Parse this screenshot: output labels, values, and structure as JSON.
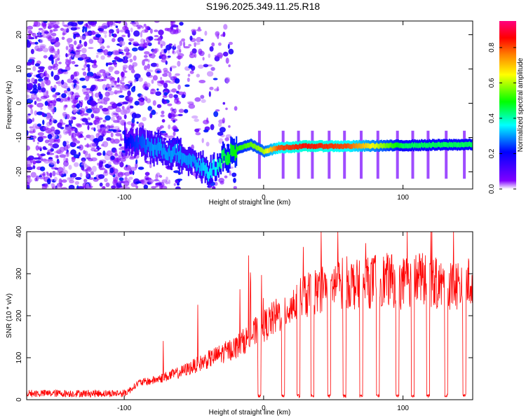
{
  "title": "S196.2025.349.11.25.R18",
  "chart_data": [
    {
      "type": "heatmap",
      "xlabel": "Height of straight line (km)",
      "ylabel": "Frequency (Hz)",
      "xlim": [
        -170,
        150
      ],
      "ylim": [
        -25,
        24
      ],
      "xticks": [
        -100,
        0,
        100
      ],
      "yticks": [
        -20,
        -10,
        0,
        10,
        20
      ],
      "colorbar": {
        "label": "Normalized spectral amplitude",
        "range": [
          0.0,
          0.95
        ],
        "ticks": [
          "0.0",
          "0.2",
          "0.4",
          "0.6",
          "0.8"
        ],
        "tick_values": [
          0.0,
          0.2,
          0.4,
          0.6,
          0.8
        ],
        "colors": [
          "#ffffff",
          "#8000ff",
          "#0000ff",
          "#00ffff",
          "#00ff00",
          "#ffff00",
          "#ff8000",
          "#ff0000",
          "#ff0080"
        ]
      },
      "ridge": {
        "x": [
          -100,
          -90,
          -80,
          -70,
          -60,
          -50,
          -40,
          -35,
          -30,
          -20,
          -10,
          0,
          10,
          30,
          60,
          100,
          150
        ],
        "freq": [
          -11,
          -12,
          -12.5,
          -14,
          -15,
          -17,
          -20,
          -19,
          -16,
          -13.5,
          -12,
          -14,
          -13,
          -12.5,
          -12.5,
          -12.3,
          -12
        ],
        "amplitude": [
          0.2,
          0.25,
          0.3,
          0.3,
          0.3,
          0.3,
          0.35,
          0.35,
          0.45,
          0.5,
          0.55,
          0.6,
          0.8,
          0.85,
          0.8,
          0.45,
          0.45
        ]
      }
    },
    {
      "type": "line",
      "xlabel": "Height of straight line (km)",
      "ylabel": "SNR (10 * v/v)",
      "xlim": [
        -170,
        150
      ],
      "ylim": [
        0,
        400
      ],
      "xticks": [
        -100,
        0,
        100
      ],
      "yticks": [
        0,
        100,
        200,
        300,
        400
      ],
      "color": "#ff0000",
      "series": [
        {
          "name": "SNR",
          "x": [
            -170,
            -150,
            -130,
            -110,
            -100,
            -95,
            -90,
            -80,
            -70,
            -60,
            -50,
            -40,
            -30,
            -20,
            -10,
            0,
            10,
            20,
            30,
            40,
            50,
            60,
            70,
            80,
            90,
            100,
            110,
            120,
            130,
            140,
            150
          ],
          "y": [
            15,
            15,
            15,
            15,
            15,
            25,
            40,
            45,
            55,
            65,
            80,
            95,
            110,
            125,
            150,
            175,
            200,
            225,
            245,
            265,
            275,
            280,
            270,
            285,
            285,
            275,
            290,
            280,
            270,
            275,
            280
          ]
        }
      ],
      "dropouts_x": [
        -3,
        14,
        25,
        35,
        47,
        58,
        70,
        82,
        96,
        107,
        118,
        131,
        144
      ]
    }
  ]
}
